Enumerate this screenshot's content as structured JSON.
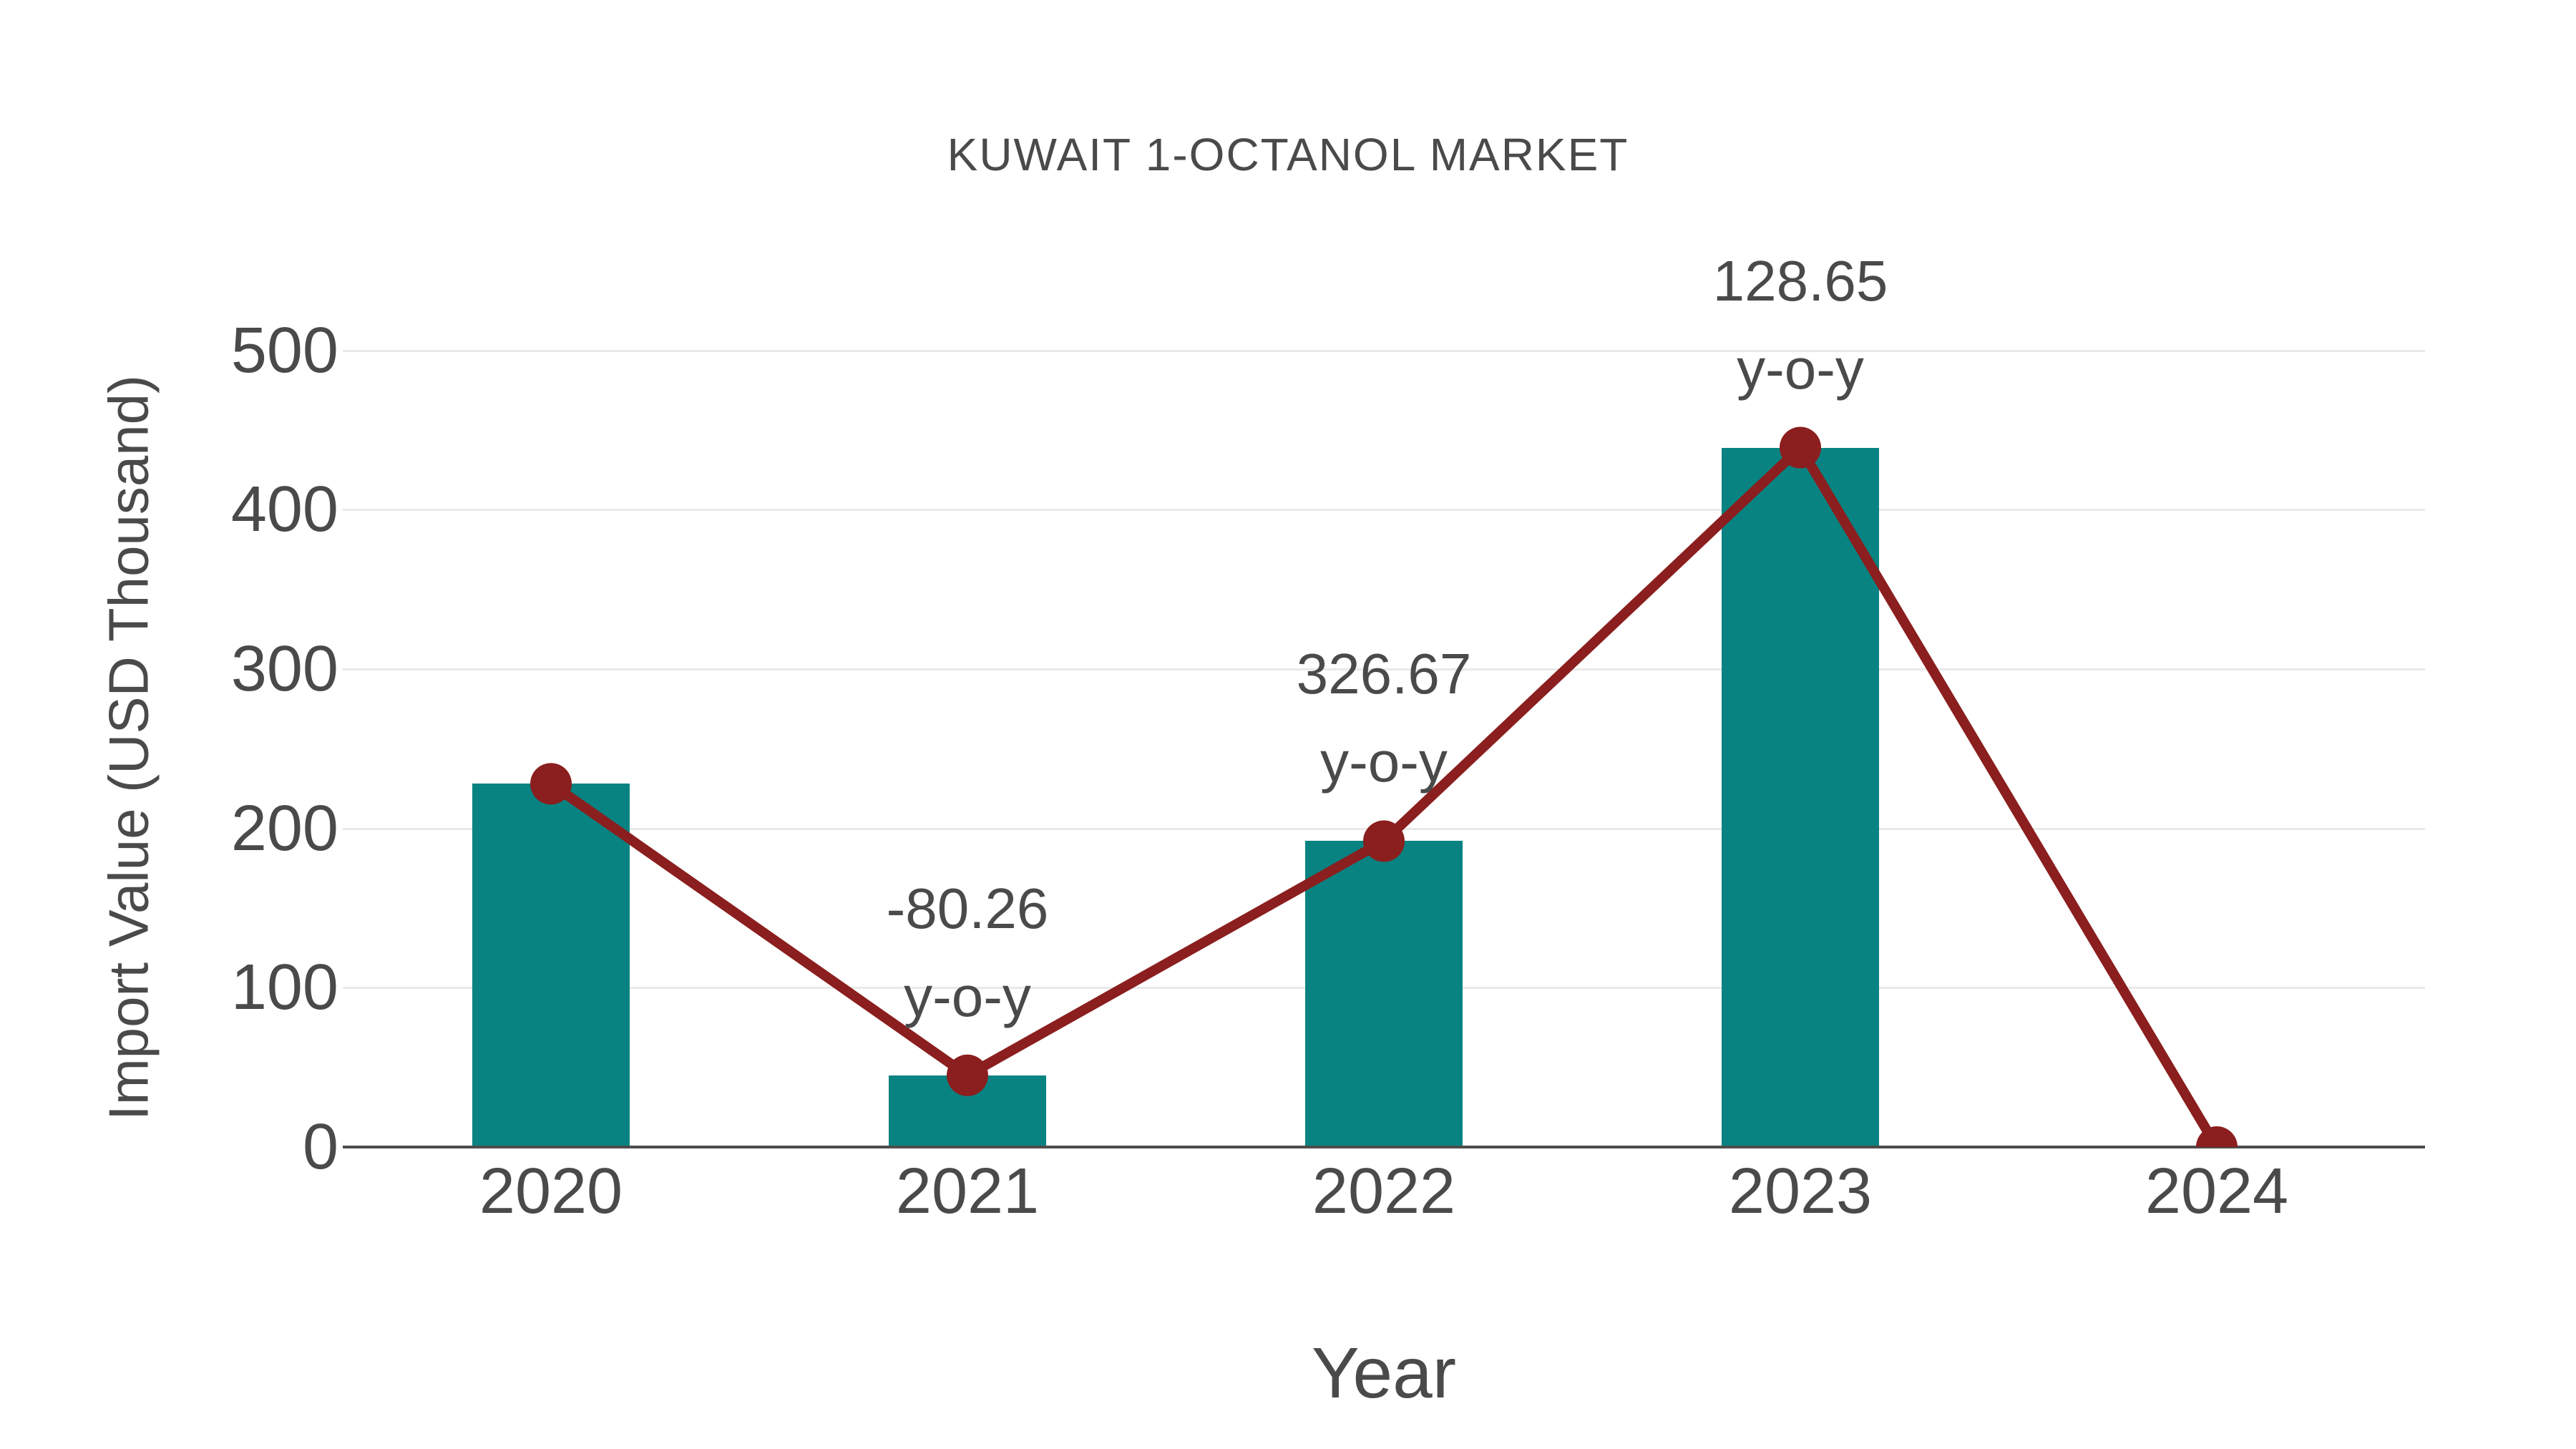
{
  "chart_data": {
    "type": "bar",
    "title": "KUWAIT 1-OCTANOL MARKET",
    "xlabel": "Year",
    "ylabel": "Import Value (USD Thousand)",
    "categories": [
      "2020",
      "2021",
      "2022",
      "2023",
      "2024"
    ],
    "series": [
      {
        "name": "Import Value (USD Thousand)",
        "type": "bar",
        "color": "#088381",
        "values": [
          228,
          45,
          192,
          439,
          0
        ]
      },
      {
        "name": "Import Value trend",
        "type": "line",
        "marker": "circle",
        "color": "#8B1E1E",
        "values": [
          228,
          45,
          192,
          439,
          0
        ]
      }
    ],
    "annotations": [
      {
        "category": "2021",
        "value_text": "-80.26",
        "sub_text": "y-o-y"
      },
      {
        "category": "2022",
        "value_text": "326.67",
        "sub_text": "y-o-y"
      },
      {
        "category": "2023",
        "value_text": "128.65",
        "sub_text": "y-o-y"
      }
    ],
    "yticks": [
      0,
      100,
      200,
      300,
      400,
      500
    ],
    "ylim": [
      0,
      549
    ],
    "grid": true,
    "legend": "none",
    "colors": {
      "grid": "#e9e9e9",
      "axis": "#4d4d4d",
      "text": "#4a4a4a",
      "background": "#ffffff"
    }
  }
}
